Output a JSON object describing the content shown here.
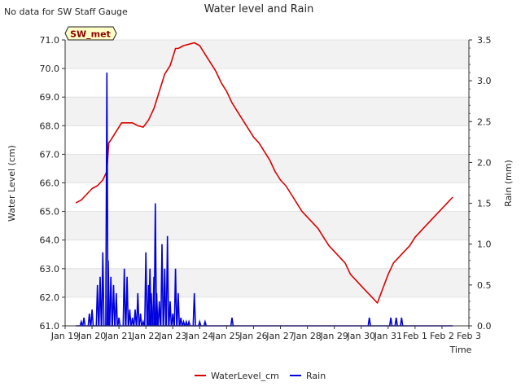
{
  "page": {
    "corner_note": "No data for SW Staff Gauge",
    "station_badge": "SW_met"
  },
  "colors": {
    "water": "#dd0000",
    "rain": "#0000dd",
    "band": "#f2f2f2",
    "badge_fill": "#ffffc8",
    "badge_text": "#8b0000"
  },
  "chart_data": {
    "type": "line",
    "title": "Water level and Rain",
    "xlabel": "Time",
    "ylabel_left": "Water Level (cm)",
    "ylabel_right": "Rain (mm)",
    "x_tick_labels": [
      "Jan 19",
      "Jan 20",
      "Jan 21",
      "Jan 22",
      "Jan 23",
      "Jan 24",
      "Jan 25",
      "Jan 26",
      "Jan 27",
      "Jan 28",
      "Jan 29",
      "Jan 30",
      "Jan 31",
      "Feb 1",
      "Feb 2",
      "Feb 3"
    ],
    "xlim_days": [
      0,
      15
    ],
    "ylim_left": [
      61.0,
      71.0
    ],
    "left_ticks": [
      "61.0",
      "62.0",
      "63.0",
      "64.0",
      "65.0",
      "66.0",
      "67.0",
      "68.0",
      "69.0",
      "70.0",
      "71.0"
    ],
    "ylim_right": [
      0.0,
      3.5
    ],
    "right_ticks": [
      "0.0",
      "0.5",
      "1.0",
      "1.5",
      "2.0",
      "2.5",
      "3.0",
      "3.5"
    ],
    "legend": [
      "WaterLevel_cm",
      "Rain"
    ],
    "legend_position": "bottom-center",
    "series": [
      {
        "name": "WaterLevel_cm",
        "axis": "left",
        "x_days": [
          0.4,
          0.6,
          0.8,
          1.0,
          1.2,
          1.4,
          1.55,
          1.62,
          1.7,
          1.9,
          2.1,
          2.3,
          2.5,
          2.7,
          2.9,
          3.1,
          3.3,
          3.5,
          3.7,
          3.9,
          4.1,
          4.2,
          4.4,
          4.6,
          4.8,
          5.0,
          5.2,
          5.4,
          5.6,
          5.8,
          6.0,
          6.2,
          6.4,
          6.6,
          6.8,
          7.0,
          7.2,
          7.4,
          7.6,
          7.8,
          8.0,
          8.2,
          8.4,
          8.6,
          8.8,
          9.0,
          9.2,
          9.4,
          9.6,
          9.8,
          10.0,
          10.2,
          10.4,
          10.6,
          10.8,
          11.0,
          11.2,
          11.4,
          11.6,
          11.8,
          12.0,
          12.2,
          12.4,
          12.6,
          12.8,
          13.0,
          13.2,
          13.4,
          13.6,
          13.8,
          14.0,
          14.2,
          14.4
        ],
        "values": [
          65.3,
          65.4,
          65.6,
          65.8,
          65.9,
          66.1,
          66.4,
          67.4,
          67.5,
          67.8,
          68.1,
          68.1,
          68.1,
          68.0,
          67.95,
          68.2,
          68.6,
          69.2,
          69.8,
          70.1,
          70.7,
          70.7,
          70.8,
          70.85,
          70.9,
          70.8,
          70.5,
          70.2,
          69.9,
          69.5,
          69.2,
          68.8,
          68.5,
          68.2,
          67.9,
          67.6,
          67.4,
          67.1,
          66.8,
          66.4,
          66.1,
          65.9,
          65.6,
          65.3,
          65.0,
          64.8,
          64.6,
          64.4,
          64.1,
          63.8,
          63.6,
          63.4,
          63.2,
          62.8,
          62.6,
          62.4,
          62.2,
          62.0,
          61.8,
          62.3,
          62.8,
          63.2,
          63.4,
          63.6,
          63.8,
          64.1,
          64.3,
          64.5,
          64.7,
          64.9,
          65.1,
          65.3,
          65.5
        ]
      },
      {
        "name": "Rain",
        "axis": "right",
        "x_days": [
          0.6,
          0.7,
          0.9,
          1.0,
          1.2,
          1.3,
          1.4,
          1.55,
          1.6,
          1.7,
          1.8,
          1.9,
          2.0,
          2.2,
          2.3,
          2.4,
          2.5,
          2.6,
          2.7,
          2.8,
          2.9,
          3.0,
          3.1,
          3.15,
          3.2,
          3.3,
          3.35,
          3.4,
          3.5,
          3.6,
          3.7,
          3.8,
          3.9,
          4.0,
          4.1,
          4.2,
          4.3,
          4.4,
          4.5,
          4.6,
          4.8,
          5.0,
          5.2,
          6.2,
          11.3,
          12.1,
          12.3,
          12.5
        ],
        "values": [
          0.05,
          0.1,
          0.15,
          0.2,
          0.5,
          0.6,
          0.9,
          3.1,
          0.8,
          0.6,
          0.5,
          0.4,
          0.1,
          0.7,
          0.6,
          0.2,
          0.1,
          0.2,
          0.4,
          0.15,
          0.05,
          0.9,
          0.5,
          0.7,
          0.4,
          0.6,
          1.5,
          0.4,
          0.3,
          1.0,
          0.7,
          1.1,
          0.3,
          0.15,
          0.7,
          0.4,
          0.1,
          0.05,
          0.05,
          0.05,
          0.4,
          0.05,
          0.05,
          0.1,
          0.1,
          0.1,
          0.1,
          0.1
        ]
      }
    ]
  }
}
